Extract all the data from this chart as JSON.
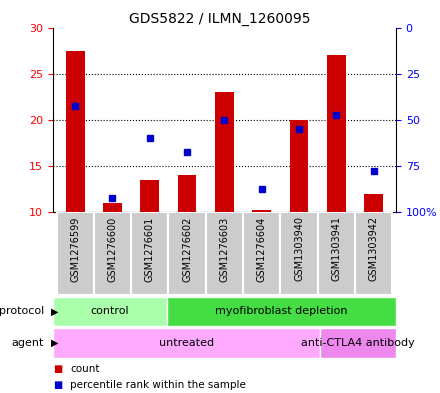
{
  "title": "GDS5822 / ILMN_1260095",
  "samples": [
    "GSM1276599",
    "GSM1276600",
    "GSM1276601",
    "GSM1276602",
    "GSM1276603",
    "GSM1276604",
    "GSM1303940",
    "GSM1303941",
    "GSM1303942"
  ],
  "count_values": [
    27.5,
    11.0,
    13.5,
    14.0,
    23.0,
    10.2,
    20.0,
    27.0,
    12.0
  ],
  "percentile_values": [
    21.5,
    11.5,
    18.0,
    16.5,
    20.0,
    12.5,
    19.0,
    20.5,
    14.5
  ],
  "ylim_left": [
    10,
    30
  ],
  "ylim_right": [
    0,
    100
  ],
  "yticks_left": [
    10,
    15,
    20,
    25,
    30
  ],
  "yticks_right": [
    0,
    25,
    50,
    75,
    100
  ],
  "ytick_right_labels": [
    "0",
    "25",
    "50",
    "75",
    "100%"
  ],
  "bar_color": "#cc0000",
  "dot_color": "#0000cc",
  "bar_bottom": 10,
  "bar_width": 0.5,
  "protocol_groups": [
    {
      "label": "control",
      "start": 0,
      "end": 3,
      "color": "#aaffaa"
    },
    {
      "label": "myofibroblast depletion",
      "start": 3,
      "end": 9,
      "color": "#44dd44"
    }
  ],
  "agent_groups": [
    {
      "label": "untreated",
      "start": 0,
      "end": 7,
      "color": "#ffaaff"
    },
    {
      "label": "anti-CTLA4 antibody",
      "start": 7,
      "end": 9,
      "color": "#ee88ee"
    }
  ],
  "legend_items": [
    {
      "label": "count",
      "color": "#cc0000"
    },
    {
      "label": "percentile rank within the sample",
      "color": "#0000cc"
    }
  ],
  "plot_bg": "#ffffff",
  "label_area_bg": "#cccccc",
  "grid_color": "black",
  "protocol_label": "protocol",
  "agent_label": "agent",
  "title_fontsize": 10,
  "axis_tick_fontsize": 8,
  "xtick_fontsize": 7,
  "label_fontsize": 8,
  "group_label_fontsize": 8
}
